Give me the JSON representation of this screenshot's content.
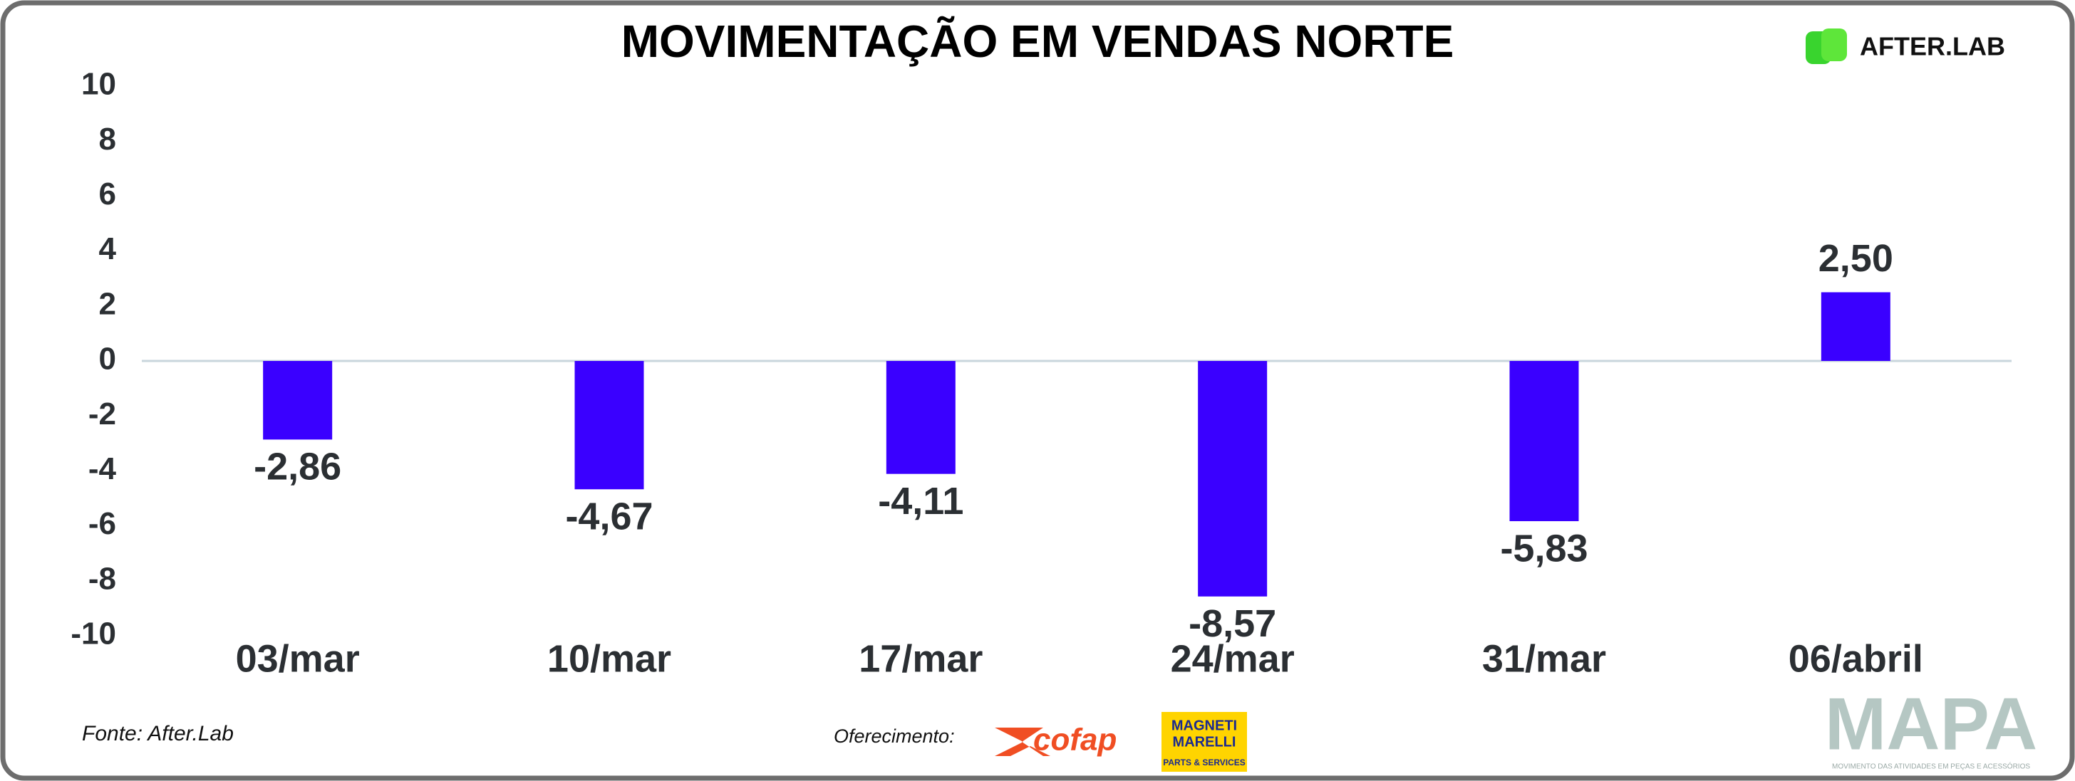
{
  "chart_data": {
    "type": "bar",
    "title": "MOVIMENTAÇÃO EM VENDAS NORTE",
    "categories": [
      "03/mar",
      "10/mar",
      "17/mar",
      "24/mar",
      "31/mar",
      "06/abril"
    ],
    "values": [
      -2.86,
      -4.67,
      -4.11,
      -8.57,
      -5.83,
      2.5
    ],
    "value_labels": [
      "-2,86",
      "-4,67",
      "-4,11",
      "-8,57",
      "-5,83",
      "2,50"
    ],
    "color": "#3a00ff",
    "ylim": [
      -10,
      10
    ],
    "yticks": [
      10,
      8,
      6,
      4,
      2,
      0,
      -2,
      -4,
      -6,
      -8,
      -10
    ],
    "grid": false
  },
  "brand": "AFTER.LAB",
  "source": "Fonte: After.Lab",
  "sponsor_label": "Oferecimento:",
  "sponsors": [
    "cofap",
    "MAGNETI",
    "MARELLI",
    "PARTS & SERVICES"
  ],
  "footer_logo": {
    "title": "MAPA",
    "subtitle": "MOVIMENTO DAS ATIVIDADES EM PEÇAS E ACESSÓRIOS"
  }
}
